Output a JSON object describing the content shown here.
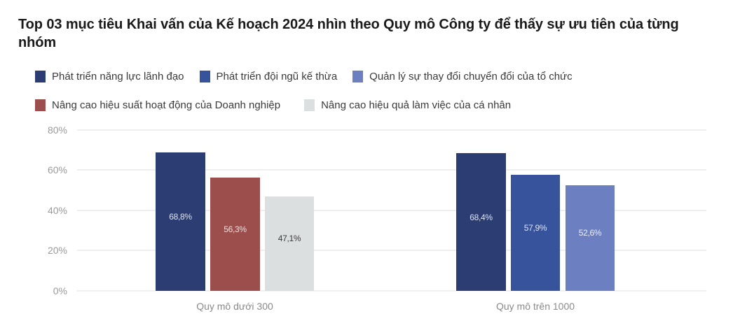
{
  "title": "Top 03 mục tiêu Khai vấn của Kế hoạch 2024 nhìn theo Quy mô Công ty để thấy sự ưu tiên của từng nhóm",
  "legend": [
    {
      "label": "Phát triển năng lực lãnh đạo",
      "color": "#2b3d73"
    },
    {
      "label": "Phát triển đội ngũ kế thừa",
      "color": "#37539c"
    },
    {
      "label": "Quản lý sự thay đổi chuyển đổi của tổ chức",
      "color": "#6c7fc0"
    },
    {
      "label": "Nâng cao hiệu suất hoạt động của Doanh nghiệp",
      "color": "#9b4e4b"
    },
    {
      "label": "Nâng cao hiệu quả làm việc của cá nhân",
      "color": "#dcdfe0"
    }
  ],
  "y_ticks": [
    "80%",
    "60%",
    "40%",
    "20%",
    "0%"
  ],
  "groups": [
    {
      "label": "Quy mô dưới 300",
      "bars": [
        {
          "series": "Phát triển năng lực lãnh đạo",
          "value": 68.8,
          "label": "68,8%",
          "color": "#2b3d73",
          "text_color": "#dfe4f2"
        },
        {
          "series": "Nâng cao hiệu suất hoạt động của Doanh nghiệp",
          "value": 56.3,
          "label": "56,3%",
          "color": "#9b4e4b",
          "text_color": "#f2dcdb"
        },
        {
          "series": "Nâng cao hiệu quả làm việc của cá nhân",
          "value": 47.1,
          "label": "47,1%",
          "color": "#dcdfe0",
          "text_color": "#3a3a3a"
        }
      ]
    },
    {
      "label": "Quy mô trên 1000",
      "bars": [
        {
          "series": "Phát triển năng lực lãnh đạo",
          "value": 68.4,
          "label": "68,4%",
          "color": "#2b3d73",
          "text_color": "#dfe4f2"
        },
        {
          "series": "Phát triển đội ngũ kế thừa",
          "value": 57.9,
          "label": "57,9%",
          "color": "#37539c",
          "text_color": "#dfe4f2"
        },
        {
          "series": "Quản lý sự thay đổi chuyển đổi của tổ chức",
          "value": 52.6,
          "label": "52,6%",
          "color": "#6c7fc0",
          "text_color": "#eef0f8"
        }
      ]
    }
  ],
  "chart_data": {
    "type": "bar",
    "title": "Top 03 mục tiêu Khai vấn của Kế hoạch 2024 nhìn theo Quy mô Công ty để thấy sự ưu tiên của từng nhóm",
    "categories": [
      "Quy mô dưới 300",
      "Quy mô trên 1000"
    ],
    "series": [
      {
        "name": "Phát triển năng lực lãnh đạo",
        "values": [
          68.8,
          68.4
        ]
      },
      {
        "name": "Phát triển đội ngũ kế thừa",
        "values": [
          null,
          57.9
        ]
      },
      {
        "name": "Quản lý sự thay đổi chuyển đổi của tổ chức",
        "values": [
          null,
          52.6
        ]
      },
      {
        "name": "Nâng cao hiệu suất hoạt động của Doanh nghiệp",
        "values": [
          56.3,
          null
        ]
      },
      {
        "name": "Nâng cao hiệu quả làm việc của cá nhân",
        "values": [
          47.1,
          null
        ]
      }
    ],
    "xlabel": "",
    "ylabel": "",
    "ylim": [
      0,
      80
    ],
    "y_ticks": [
      0,
      20,
      40,
      60,
      80
    ],
    "grid": true,
    "legend_position": "top",
    "data_labels": true
  }
}
